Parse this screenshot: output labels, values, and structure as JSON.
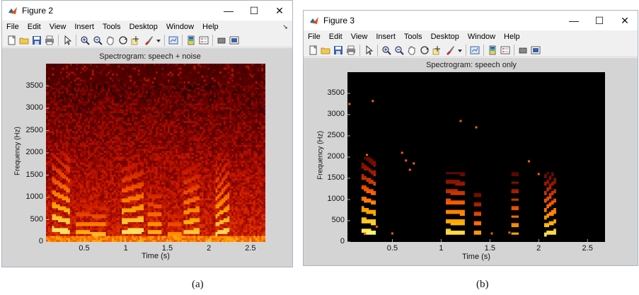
{
  "menu_items": [
    "File",
    "Edit",
    "View",
    "Insert",
    "Tools",
    "Desktop",
    "Window",
    "Help"
  ],
  "window_controls": {
    "minimize": "—",
    "maximize": "☐",
    "close": "✕"
  },
  "dock_arrow": "➘",
  "toolbar_icons": [
    "new-file-icon",
    "open-folder-icon",
    "save-icon",
    "print-icon",
    "arrow-pointer-icon",
    "zoom-in-icon",
    "zoom-out-icon",
    "pan-hand-icon",
    "rotate-3d-icon",
    "data-cursor-icon",
    "brush-icon",
    "dropdown-icon",
    "link-plot-icon",
    "colorbar-icon",
    "legend-icon",
    "hide-plot-tools-icon",
    "show-plot-tools-icon"
  ],
  "figure_a": {
    "window_title": "Figure 2",
    "plot_title": "Spectrogram: speech + noise",
    "ylabel": "Frequency (Hz)",
    "xlabel": "Time (s)",
    "caption": "(a)"
  },
  "figure_b": {
    "window_title": "Figure 3",
    "plot_title": "Spectrogram: speech only",
    "ylabel": "Frequency (Hz)",
    "xlabel": "Time (s)",
    "caption": "(b)"
  },
  "chart_data": [
    {
      "type": "heatmap",
      "title": "Spectrogram: speech + noise",
      "xlabel": "Time (s)",
      "ylabel": "Frequency (Hz)",
      "xlim": [
        0.04,
        2.68
      ],
      "ylim": [
        0,
        4000
      ],
      "xticks": [
        0.5,
        1,
        1.5,
        2,
        2.5
      ],
      "xticklabels": [
        "0.5",
        "1",
        "1.5",
        "2",
        "2.5"
      ],
      "yticks": [
        0,
        500,
        1000,
        1500,
        2000,
        2500,
        3000,
        3500
      ],
      "yticklabels": [
        "0",
        "500",
        "1000",
        "1500",
        "2000",
        "2500",
        "3000",
        "3500"
      ],
      "colormap": [
        "#1a0000",
        "#7a0000",
        "#c81800",
        "#f05000",
        "#ffa000",
        "#ffe060"
      ],
      "noise_level": 0.55,
      "max_frequency_content": 3550,
      "speech_segments": [
        {
          "t0": 0.12,
          "t1": 0.32,
          "f0_start": 280,
          "f0_end": 230,
          "top": 2050,
          "intensity": 0.85
        },
        {
          "t0": 0.4,
          "t1": 0.76,
          "f0_start": 210,
          "f0_end": 190,
          "top": 900,
          "intensity": 0.75
        },
        {
          "t0": 0.96,
          "t1": 1.22,
          "f0_start": 230,
          "f0_end": 260,
          "top": 1780,
          "intensity": 0.85
        },
        {
          "t0": 1.26,
          "t1": 1.44,
          "f0_start": 210,
          "f0_end": 200,
          "top": 1300,
          "intensity": 0.7
        },
        {
          "t0": 1.5,
          "t1": 1.68,
          "f0_start": 200,
          "f0_end": 190,
          "top": 700,
          "intensity": 0.65
        },
        {
          "t0": 1.7,
          "t1": 1.9,
          "f0_start": 220,
          "f0_end": 250,
          "top": 1750,
          "intensity": 0.75
        },
        {
          "t0": 2.08,
          "t1": 2.24,
          "f0_start": 190,
          "f0_end": 260,
          "top": 1900,
          "intensity": 0.8
        }
      ]
    },
    {
      "type": "heatmap",
      "title": "Spectrogram: speech only",
      "xlabel": "Time (s)",
      "ylabel": "Frequency (Hz)",
      "xlim": [
        0.04,
        2.68
      ],
      "ylim": [
        0,
        4000
      ],
      "xticks": [
        0.5,
        1,
        1.5,
        2,
        2.5
      ],
      "xticklabels": [
        "0.5",
        "1",
        "1.5",
        "2",
        "2.5"
      ],
      "yticks": [
        0,
        500,
        1000,
        1500,
        2000,
        2500,
        3000,
        3500
      ],
      "yticklabels": [
        "0",
        "500",
        "1000",
        "1500",
        "2000",
        "2500",
        "3000",
        "3500"
      ],
      "colormap": [
        "#000000",
        "#3a0000",
        "#a01800",
        "#ff6000",
        "#ffb000",
        "#ffff80"
      ],
      "noise_level": 0.0,
      "speech_segments": [
        {
          "t0": 0.18,
          "t1": 0.32,
          "f0_start": 260,
          "f0_end": 230,
          "top": 2000,
          "intensity": 0.9
        },
        {
          "t0": 1.04,
          "t1": 1.24,
          "f0_start": 240,
          "f0_end": 230,
          "top": 1650,
          "intensity": 0.85
        },
        {
          "t0": 1.34,
          "t1": 1.4,
          "f0_start": 220,
          "f0_end": 220,
          "top": 1250,
          "intensity": 0.7
        },
        {
          "t0": 1.72,
          "t1": 1.8,
          "f0_start": 200,
          "f0_end": 200,
          "top": 1650,
          "intensity": 0.7
        },
        {
          "t0": 2.06,
          "t1": 2.18,
          "f0_start": 190,
          "f0_end": 250,
          "top": 1650,
          "intensity": 0.85
        }
      ],
      "isolated_points": [
        {
          "t": 0.06,
          "f": 3250
        },
        {
          "t": 0.3,
          "f": 3320
        },
        {
          "t": 0.24,
          "f": 2050
        },
        {
          "t": 0.22,
          "f": 200
        },
        {
          "t": 0.6,
          "f": 2100
        },
        {
          "t": 0.68,
          "f": 1700
        },
        {
          "t": 0.64,
          "f": 1920
        },
        {
          "t": 0.72,
          "f": 1850
        },
        {
          "t": 1.2,
          "f": 2850
        },
        {
          "t": 1.36,
          "f": 2700
        },
        {
          "t": 1.9,
          "f": 1900
        },
        {
          "t": 2.0,
          "f": 1600
        },
        {
          "t": 0.5,
          "f": 200
        },
        {
          "t": 0.34,
          "f": 360
        },
        {
          "t": 1.52,
          "f": 200
        },
        {
          "t": 1.7,
          "f": 220
        }
      ]
    }
  ]
}
